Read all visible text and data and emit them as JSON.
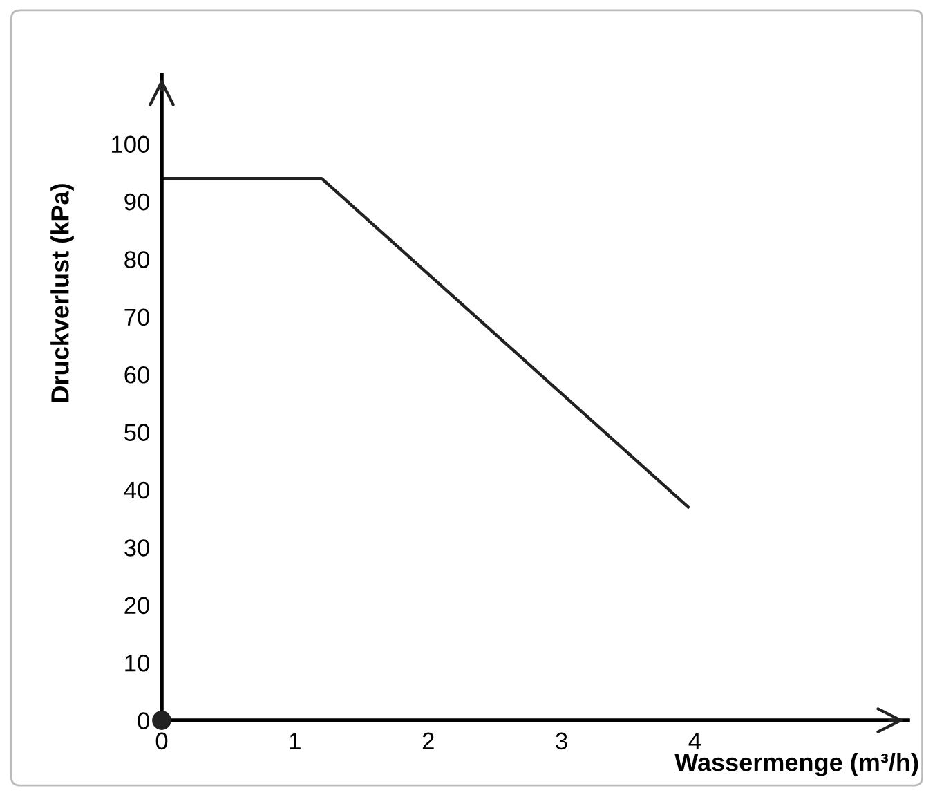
{
  "chart_data": {
    "type": "line",
    "xlabel": "Wassermenge (m³/h)",
    "ylabel": "Druckverlust (kPa)",
    "x": [
      0,
      1.2,
      3.95
    ],
    "series": [
      {
        "color": "#222222",
        "values": [
          94,
          94,
          37
        ]
      }
    ],
    "xlim": [
      0,
      5.6
    ],
    "ylim": [
      0,
      112
    ],
    "xticks": [
      0,
      1,
      2,
      3,
      4
    ],
    "yticks": [
      0,
      10,
      20,
      30,
      40,
      50,
      60,
      70,
      80,
      90,
      100
    ],
    "grid": false,
    "marker": "none",
    "line_style": "solid"
  }
}
